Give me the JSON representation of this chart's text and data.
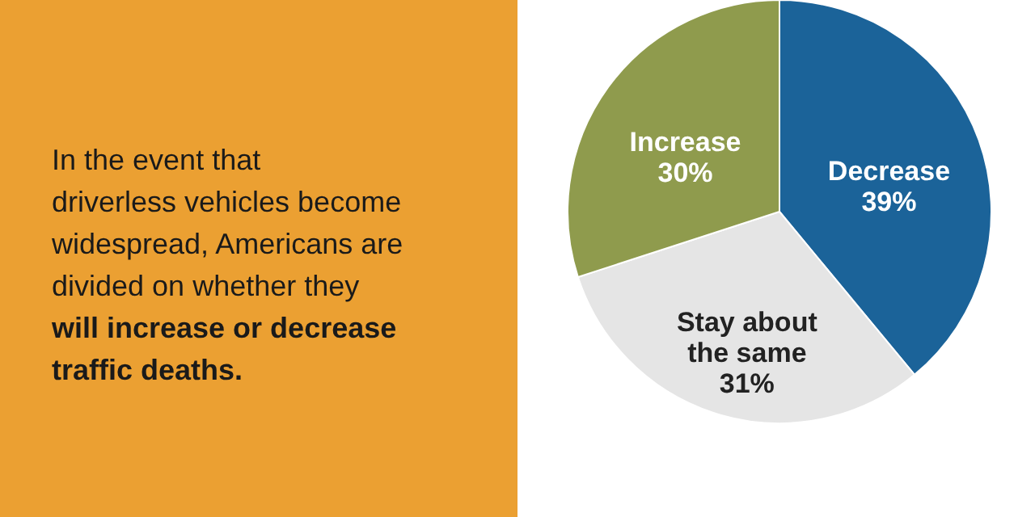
{
  "chart_data": {
    "type": "pie",
    "title": "In the event that driverless vehicles become widespread, Americans are divided on whether they",
    "subtitle": "will increase or decrease traffic deaths.",
    "categories": [
      "Decrease",
      "Stay about the same",
      "Increase"
    ],
    "values": [
      39,
      31,
      30
    ],
    "colors": [
      "#1b6399",
      "#e5e5e5",
      "#8f9b4d"
    ],
    "value_labels": [
      "39%",
      "31%",
      "30%"
    ]
  }
}
